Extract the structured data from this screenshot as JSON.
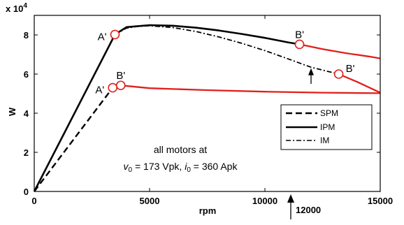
{
  "chart_data": {
    "type": "line",
    "xlabel": "rpm",
    "ylabel": "W",
    "y_exponent_label": "x 10",
    "y_exponent": "4",
    "xlim": [
      0,
      15000
    ],
    "ylim": [
      0,
      9
    ],
    "xticks": [
      0,
      5000,
      10000,
      15000
    ],
    "xtick_labels": [
      "0",
      "5000",
      "10000",
      "15000"
    ],
    "yticks": [
      0,
      2,
      4,
      6,
      8
    ],
    "ytick_labels": [
      "0",
      "2",
      "4",
      "6",
      "8"
    ],
    "grid": false,
    "legend_position": "right",
    "colors": {
      "black": "#000000",
      "red": "#e0201b"
    },
    "series": [
      {
        "name": "SPM",
        "style": "dashed",
        "segments": [
          {
            "color": "black",
            "x": [
              0,
              3400
            ],
            "y": [
              0,
              5.3
            ]
          },
          {
            "color": "black",
            "x": [
              3400,
              3750
            ],
            "y": [
              5.3,
              5.42
            ]
          },
          {
            "color": "red",
            "x": [
              3750,
              5000,
              7500,
              10000,
              12500,
              15000
            ],
            "y": [
              5.42,
              5.28,
              5.18,
              5.1,
              5.05,
              5.02
            ]
          }
        ]
      },
      {
        "name": "IPM",
        "style": "solid",
        "segments": [
          {
            "color": "black",
            "x": [
              0,
              3500
            ],
            "y": [
              0,
              8.02
            ]
          },
          {
            "color": "black",
            "x": [
              3500,
              4000,
              5000,
              6000,
              7000,
              8000,
              9000,
              10000,
              11000,
              11500
            ],
            "y": [
              8.02,
              8.4,
              8.5,
              8.47,
              8.37,
              8.23,
              8.05,
              7.85,
              7.62,
              7.52
            ]
          },
          {
            "color": "red",
            "x": [
              11500,
              12500,
              13500,
              14500,
              15000
            ],
            "y": [
              7.52,
              7.28,
              7.07,
              6.9,
              6.8
            ]
          }
        ]
      },
      {
        "name": "IM",
        "style": "dashdot",
        "segments": [
          {
            "color": "black",
            "x": [
              3500,
              4000,
              4500,
              5000,
              6000,
              7000,
              8000,
              9000,
              10000,
              11000,
              12000,
              13200
            ],
            "y": [
              8.02,
              8.35,
              8.44,
              8.47,
              8.38,
              8.18,
              7.9,
              7.57,
              7.2,
              6.78,
              6.35,
              6.0
            ]
          },
          {
            "color": "red",
            "x": [
              13200,
              14000,
              15000
            ],
            "y": [
              6.0,
              5.6,
              5.05
            ]
          }
        ]
      }
    ],
    "markers": [
      {
        "label": "A'",
        "x": 3500,
        "y": 8.02,
        "label_side": "left"
      },
      {
        "label": "B'",
        "x": 11500,
        "y": 7.52,
        "label_side": "above"
      },
      {
        "label": "B'",
        "x": 13200,
        "y": 6.0,
        "label_side": "right"
      },
      {
        "label": "A'",
        "x": 3400,
        "y": 5.3,
        "label_side": "left"
      },
      {
        "label": "B'",
        "x": 3750,
        "y": 5.42,
        "label_side": "above"
      }
    ],
    "annotations": {
      "note_line1": "all motors at",
      "note_v_symbol": "v",
      "note_v_sub": "0",
      "note_mid": " = 173 Vpk, ",
      "note_i_symbol": "i",
      "note_i_sub": "0",
      "note_end": " = 360 Apk",
      "arrow_label": "12000",
      "arrow_x": 12000,
      "inner_arrow_x": 12000,
      "inner_arrow_y": [
        5.5,
        6.3
      ]
    }
  }
}
